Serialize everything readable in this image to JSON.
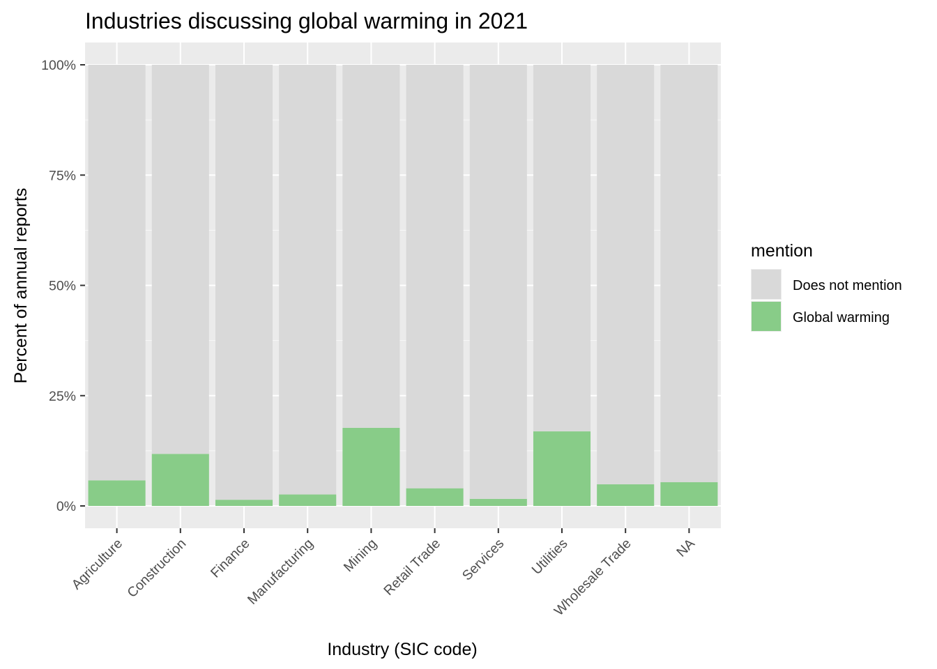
{
  "chart_data": {
    "type": "bar",
    "stacked": true,
    "title": "Industries discussing global warming in 2021",
    "xlabel": "Industry (SIC code)",
    "ylabel": "Percent of annual reports",
    "ylim": [
      0,
      100
    ],
    "y_ticks": [
      "0%",
      "25%",
      "50%",
      "75%",
      "100%"
    ],
    "y_tick_values": [
      0,
      25,
      50,
      75,
      100
    ],
    "grid": true,
    "legend_position": "right",
    "categories": [
      "Agriculture",
      "Construction",
      "Finance",
      "Manufacturing",
      "Mining",
      "Retail Trade",
      "Services",
      "Utilities",
      "Wholesale Trade",
      "NA"
    ],
    "legend": {
      "title": "mention",
      "entries": [
        {
          "label": "Does not mention",
          "color": "#d9d9d9"
        },
        {
          "label": "Global warming",
          "color": "#88cc88"
        }
      ]
    },
    "series": [
      {
        "name": "Global warming",
        "color": "#88cc88",
        "values": [
          5.8,
          11.8,
          1.4,
          2.6,
          17.7,
          4.0,
          1.6,
          16.9,
          4.9,
          5.4
        ]
      },
      {
        "name": "Does not mention",
        "color": "#d9d9d9",
        "values": [
          94.2,
          88.2,
          98.6,
          97.4,
          82.3,
          96.0,
          98.4,
          83.1,
          95.1,
          94.6
        ]
      }
    ]
  },
  "colors": {
    "panel_background": "#ebebeb",
    "grid": "#ffffff",
    "tick_text": "#4d4d4d"
  }
}
